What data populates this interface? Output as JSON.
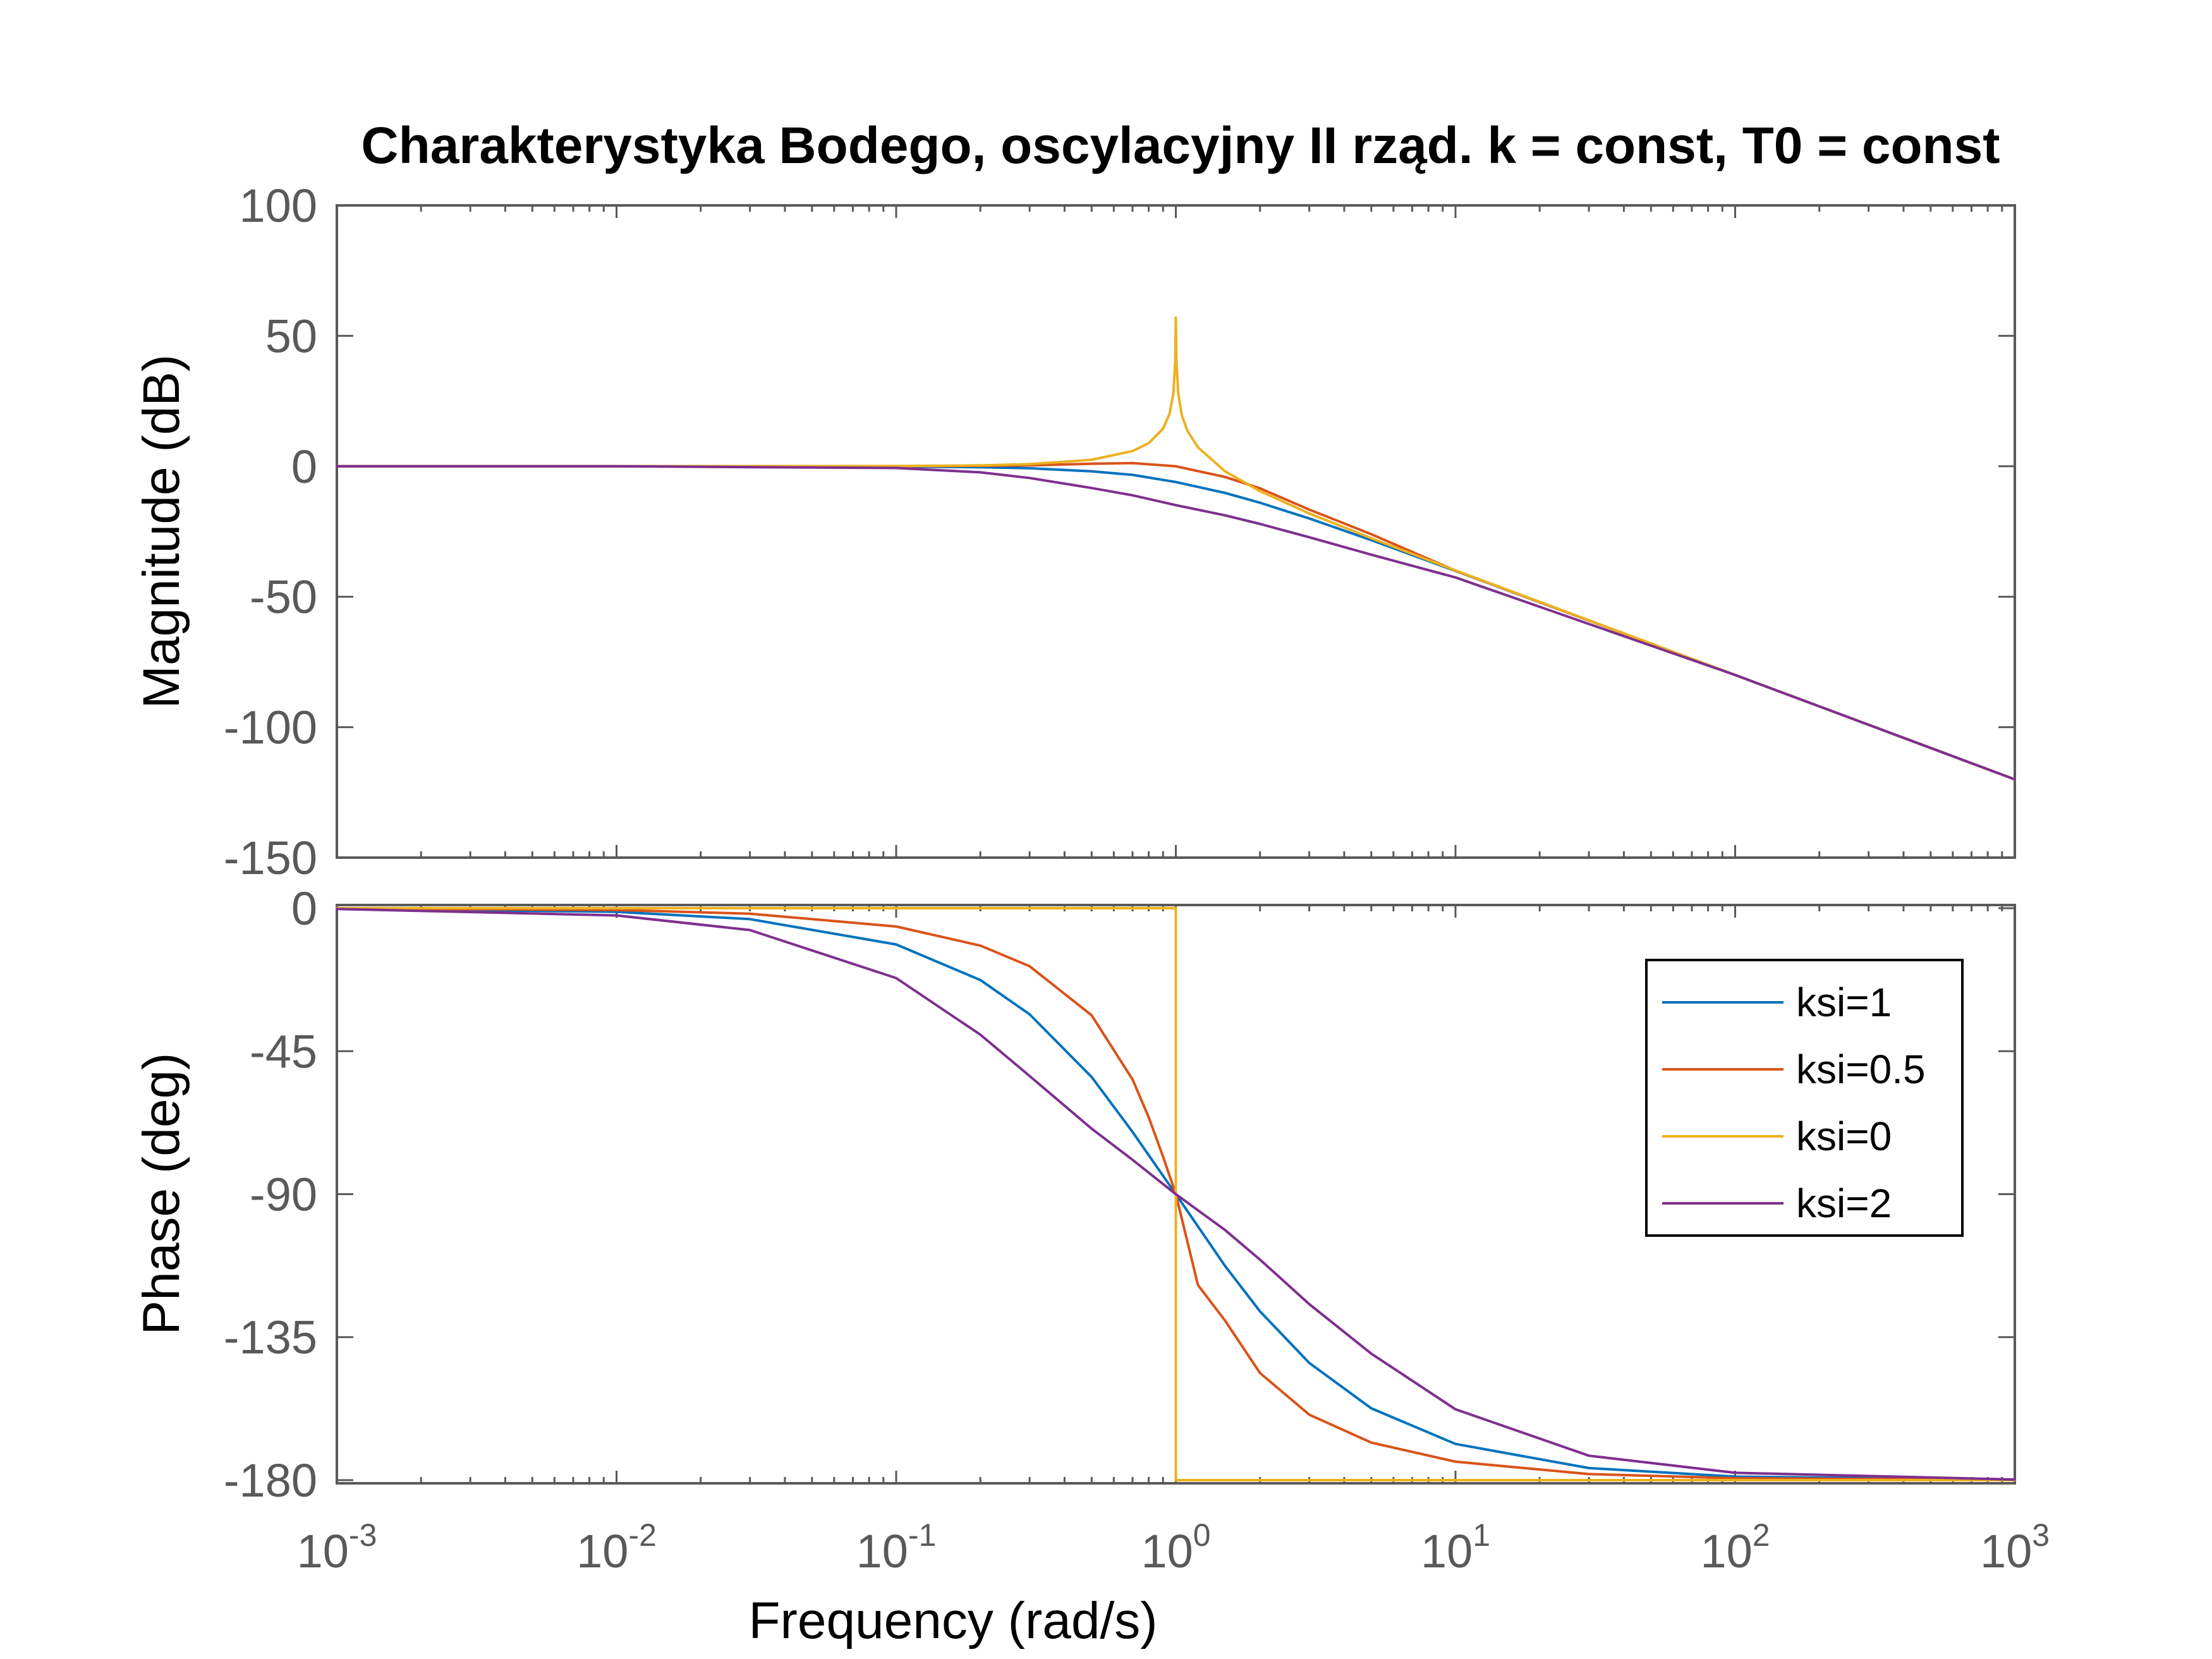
{
  "chart_data": {
    "type": "line",
    "title": "Charakterystyka Bodego, oscylacyjny II rząd. k = const, T0 = const",
    "xlabel": "Frequency  (rad/s)",
    "xscale": "log",
    "xlim": [
      0.001,
      1000
    ],
    "x_ticks": [
      {
        "base": "10",
        "exp": "-3"
      },
      {
        "base": "10",
        "exp": "-2"
      },
      {
        "base": "10",
        "exp": "-1"
      },
      {
        "base": "10",
        "exp": "0"
      },
      {
        "base": "10",
        "exp": "1"
      },
      {
        "base": "10",
        "exp": "2"
      },
      {
        "base": "10",
        "exp": "3"
      }
    ],
    "legend_location": "lower-panel, top-right",
    "grid": false,
    "panels": [
      {
        "name": "magnitude",
        "ylabel": "Magnitude (dB)",
        "ylim": [
          -150,
          100
        ],
        "y_ticks": [
          "100",
          "50",
          "0",
          "-50",
          "-100",
          "-150"
        ],
        "series": [
          {
            "label": "ksi=1",
            "color": "#0072BD",
            "x": [
              0.001,
              0.01,
              0.1,
              0.2,
              0.3,
              0.5,
              0.7,
              1,
              1.5,
              2,
              3,
              5,
              10,
              100,
              1000
            ],
            "y": [
              0.0,
              0.0,
              -0.09,
              -0.34,
              -0.75,
              -1.94,
              -3.3,
              -6.02,
              -10.2,
              -13.98,
              -20.0,
              -28.3,
              -40.09,
              -80.0,
              -120.0
            ]
          },
          {
            "label": "ksi=0.5",
            "color": "#D95319",
            "x": [
              0.001,
              0.01,
              0.1,
              0.2,
              0.3,
              0.5,
              0.7,
              1,
              1.5,
              2,
              3,
              5,
              10,
              100,
              1000
            ],
            "y": [
              0.0,
              0.0,
              0.04,
              0.17,
              0.37,
              0.97,
              1.2,
              0.0,
              -4.1,
              -8.45,
              -16.6,
              -26.05,
              -40.0,
              -80.0,
              -120.0
            ]
          },
          {
            "label": "ksi=0",
            "color": "#EDB120",
            "x": [
              0.001,
              0.01,
              0.1,
              0.2,
              0.3,
              0.5,
              0.7,
              0.8,
              0.9,
              0.95,
              0.98,
              0.995,
              1,
              1.005,
              1.02,
              1.05,
              1.1,
              1.2,
              1.5,
              2,
              3,
              5,
              10,
              100,
              1000
            ],
            "y": [
              0.0,
              0.0,
              0.09,
              0.35,
              0.82,
              2.5,
              5.85,
              8.87,
              14.42,
              20.1,
              27.96,
              40.0,
              57.0,
              40.0,
              27.96,
              19.6,
              13.6,
              7.3,
              -1.94,
              -9.54,
              -18.06,
              -27.6,
              -39.9,
              -80.0,
              -120.0
            ]
          },
          {
            "label": "ksi=2",
            "color": "#7E2F8E",
            "x": [
              0.001,
              0.01,
              0.1,
              0.2,
              0.3,
              0.5,
              0.7,
              1,
              1.5,
              2,
              3,
              5,
              10,
              100,
              1000
            ],
            "y": [
              0.0,
              -0.01,
              -0.65,
              -2.33,
              -4.47,
              -8.34,
              -11.13,
              -14.9,
              -18.8,
              -22.1,
              -27.2,
              -33.9,
              -42.6,
              -80.0,
              -120.0
            ]
          }
        ]
      },
      {
        "name": "phase",
        "ylabel": "Phase (deg)",
        "ylim": [
          -181,
          1
        ],
        "y_ticks": [
          "0",
          "-45",
          "-90",
          "-135",
          "-180"
        ],
        "series": [
          {
            "label": "ksi=1",
            "color": "#0072BD",
            "x": [
              0.001,
              0.01,
              0.03,
              0.1,
              0.2,
              0.3,
              0.5,
              0.7,
              1,
              1.5,
              2,
              3,
              5,
              10,
              30,
              100,
              1000
            ],
            "y": [
              -0.11,
              -1.15,
              -3.44,
              -11.42,
              -22.62,
              -33.4,
              -53.13,
              -70.4,
              -90.0,
              -112.6,
              -126.9,
              -143.1,
              -157.4,
              -168.6,
              -176.2,
              -178.9,
              -179.9
            ]
          },
          {
            "label": "ksi=0.5",
            "color": "#D95319",
            "x": [
              0.001,
              0.01,
              0.03,
              0.1,
              0.2,
              0.3,
              0.5,
              0.7,
              0.8,
              0.9,
              1,
              1.2,
              1.5,
              2,
              3,
              5,
              10,
              30,
              100,
              1000
            ],
            "y": [
              -0.06,
              -0.57,
              -1.72,
              -5.77,
              -11.77,
              -18.25,
              -33.7,
              -53.9,
              -65.8,
              -78.2,
              -90.0,
              -118.6,
              -129.8,
              -146.3,
              -159.4,
              -168.2,
              -174.2,
              -178.1,
              -179.4,
              -179.9
            ]
          },
          {
            "label": "ksi=0",
            "color": "#EDB120",
            "x": [
              0.001,
              0.5,
              1,
              1,
              10,
              1000
            ],
            "y": [
              0,
              0,
              0,
              -180,
              -180,
              -180
            ]
          },
          {
            "label": "ksi=2",
            "color": "#7E2F8E",
            "x": [
              0.001,
              0.01,
              0.03,
              0.1,
              0.2,
              0.3,
              0.5,
              0.7,
              1,
              1.5,
              2,
              3,
              5,
              10,
              30,
              100,
              1000
            ],
            "y": [
              -0.23,
              -2.29,
              -6.87,
              -22.0,
              -39.8,
              -52.8,
              -69.4,
              -79.2,
              -90.0,
              -101.3,
              -110.6,
              -124.6,
              -140.2,
              -157.7,
              -172.3,
              -177.7,
              -179.8
            ]
          }
        ]
      }
    ]
  }
}
